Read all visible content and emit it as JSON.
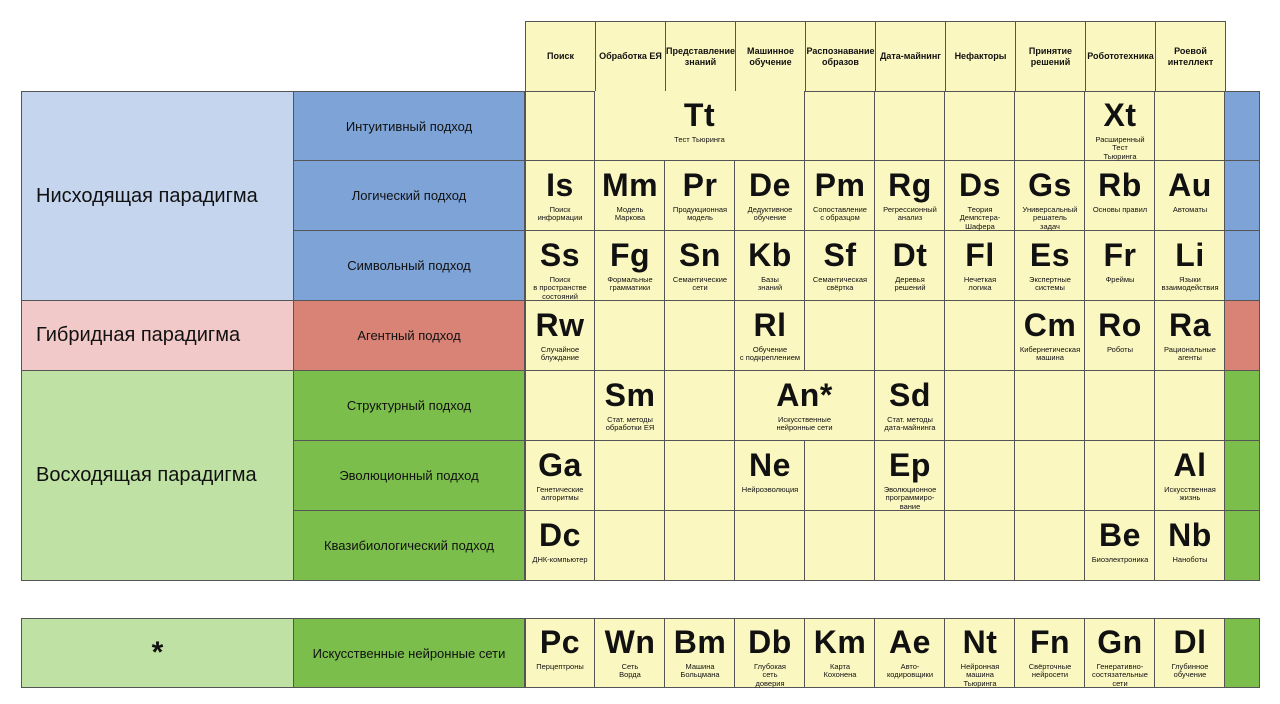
{
  "colors": {
    "yellow": "#fbf7c0",
    "top_light": "#c5d5ee",
    "top_dark": "#7ea3d6",
    "hybrid_light": "#f1c9c9",
    "hybrid_dark": "#d98377",
    "bottom_light": "#bfe1a3",
    "bottom_dark": "#7cbe4b"
  },
  "columns": [
    "Поиск",
    "Обработка ЕЯ",
    "Представление знаний",
    "Машинное обучение",
    "Распознавание образов",
    "Дата-майнинг",
    "Нефакторы",
    "Принятие решений",
    "Робототехника",
    "Роевой интеллект"
  ],
  "paradigms": [
    {
      "label": "Нисходящая парадигма",
      "color": "top"
    },
    {
      "label": "Гибридная парадигма",
      "color": "hybrid"
    },
    {
      "label": "Восходящая парадигма",
      "color": "bottom"
    }
  ],
  "approaches": [
    "Интуитивный подход",
    "Логический подход",
    "Символьный подход",
    "Агентный подход",
    "Структурный подход",
    "Эволюционный подход",
    "Квазибиологический подход"
  ],
  "elements": [
    {
      "sym": "Tt",
      "name": "Тест Тьюринга",
      "row": 0,
      "col": 1,
      "span": 3
    },
    {
      "sym": "Xt",
      "name": "Расширенный\nТест\nТьюринга",
      "row": 0,
      "col": 8,
      "span": 1
    },
    {
      "sym": "Is",
      "name": "Поиск\nинформации",
      "row": 1,
      "col": 0,
      "span": 1
    },
    {
      "sym": "Mm",
      "name": "Модель\nМаркова",
      "row": 1,
      "col": 1,
      "span": 1
    },
    {
      "sym": "Pr",
      "name": "Продукционная\nмодель",
      "row": 1,
      "col": 2,
      "span": 1
    },
    {
      "sym": "De",
      "name": "Дедуктивное\nобучение",
      "row": 1,
      "col": 3,
      "span": 1
    },
    {
      "sym": "Pm",
      "name": "Сопоставление\nс образцом",
      "row": 1,
      "col": 4,
      "span": 1
    },
    {
      "sym": "Rg",
      "name": "Регрессионный\nанализ",
      "row": 1,
      "col": 5,
      "span": 1
    },
    {
      "sym": "Ds",
      "name": "Теория\nДемпстера-\nШафера",
      "row": 1,
      "col": 6,
      "span": 1
    },
    {
      "sym": "Gs",
      "name": "Универсальный\nрешатель\nзадач",
      "row": 1,
      "col": 7,
      "span": 1
    },
    {
      "sym": "Rb",
      "name": "Основы правил",
      "row": 1,
      "col": 8,
      "span": 1
    },
    {
      "sym": "Au",
      "name": "Автоматы",
      "row": 1,
      "col": 9,
      "span": 1
    },
    {
      "sym": "Ss",
      "name": "Поиск\nв пространстве\nсостояний",
      "row": 2,
      "col": 0,
      "span": 1
    },
    {
      "sym": "Fg",
      "name": "Формальные\nграмматики",
      "row": 2,
      "col": 1,
      "span": 1
    },
    {
      "sym": "Sn",
      "name": "Семантические\nсети",
      "row": 2,
      "col": 2,
      "span": 1
    },
    {
      "sym": "Kb",
      "name": "Базы\nзнаний",
      "row": 2,
      "col": 3,
      "span": 1
    },
    {
      "sym": "Sf",
      "name": "Семантическая\nсвёртка",
      "row": 2,
      "col": 4,
      "span": 1
    },
    {
      "sym": "Dt",
      "name": "Деревья\nрешений",
      "row": 2,
      "col": 5,
      "span": 1
    },
    {
      "sym": "Fl",
      "name": "Нечеткая\nлогика",
      "row": 2,
      "col": 6,
      "span": 1
    },
    {
      "sym": "Es",
      "name": "Экспертные\nсистемы",
      "row": 2,
      "col": 7,
      "span": 1
    },
    {
      "sym": "Fr",
      "name": "Фреймы",
      "row": 2,
      "col": 8,
      "span": 1
    },
    {
      "sym": "Li",
      "name": "Языки\nвзаимодействия",
      "row": 2,
      "col": 9,
      "span": 1
    },
    {
      "sym": "Rw",
      "name": "Случайное\nблуждание",
      "row": 3,
      "col": 0,
      "span": 1
    },
    {
      "sym": "Rl",
      "name": "Обучение\nс подкреплением",
      "row": 3,
      "col": 3,
      "span": 1
    },
    {
      "sym": "Cm",
      "name": "Кибернетическая\nмашина",
      "row": 3,
      "col": 7,
      "span": 1
    },
    {
      "sym": "Ro",
      "name": "Роботы",
      "row": 3,
      "col": 8,
      "span": 1
    },
    {
      "sym": "Ra",
      "name": "Рациональные\nагенты",
      "row": 3,
      "col": 9,
      "span": 1
    },
    {
      "sym": "Sm",
      "name": "Стат. методы\nобработки ЕЯ",
      "row": 4,
      "col": 1,
      "span": 1
    },
    {
      "sym": "An*",
      "name": "Искусственные\nнейронные сети",
      "row": 4,
      "col": 3,
      "span": 2
    },
    {
      "sym": "Sd",
      "name": "Стат. методы\nдата-майнинга",
      "row": 4,
      "col": 5,
      "span": 1
    },
    {
      "sym": "Ga",
      "name": "Генетические\nалгоритмы",
      "row": 5,
      "col": 0,
      "span": 1
    },
    {
      "sym": "Ne",
      "name": "Нейроэволюция",
      "row": 5,
      "col": 3,
      "span": 1
    },
    {
      "sym": "Ep",
      "name": "Эволюционное\nпрограммиро-\nвание",
      "row": 5,
      "col": 5,
      "span": 1
    },
    {
      "sym": "Al",
      "name": "Искусственная\nжизнь",
      "row": 5,
      "col": 9,
      "span": 1
    },
    {
      "sym": "Dc",
      "name": "ДНК-компьютер",
      "row": 6,
      "col": 0,
      "span": 1
    },
    {
      "sym": "Be",
      "name": "Биоэлектроника",
      "row": 6,
      "col": 8,
      "span": 1
    },
    {
      "sym": "Nb",
      "name": "Наноботы",
      "row": 6,
      "col": 9,
      "span": 1
    }
  ],
  "nn_section": {
    "star": "*",
    "approach": "Искусственные нейронные сети",
    "elements": [
      {
        "sym": "Pc",
        "name": "Перцептроны"
      },
      {
        "sym": "Wn",
        "name": "Сеть\nВорда"
      },
      {
        "sym": "Bm",
        "name": "Машина\nБольцмана"
      },
      {
        "sym": "Db",
        "name": "Глубокая\nсеть\nдоверия"
      },
      {
        "sym": "Km",
        "name": "Карта\nКохонена"
      },
      {
        "sym": "Ae",
        "name": "Авто-\nкодировщики"
      },
      {
        "sym": "Nt",
        "name": "Нейронная\nмашина\nТьюринга"
      },
      {
        "sym": "Fn",
        "name": "Свёрточные\nнейросети"
      },
      {
        "sym": "Gn",
        "name": "Генеративно-\nсостязательные\nсети"
      },
      {
        "sym": "Dl",
        "name": "Глубинное\nобучение"
      }
    ]
  }
}
